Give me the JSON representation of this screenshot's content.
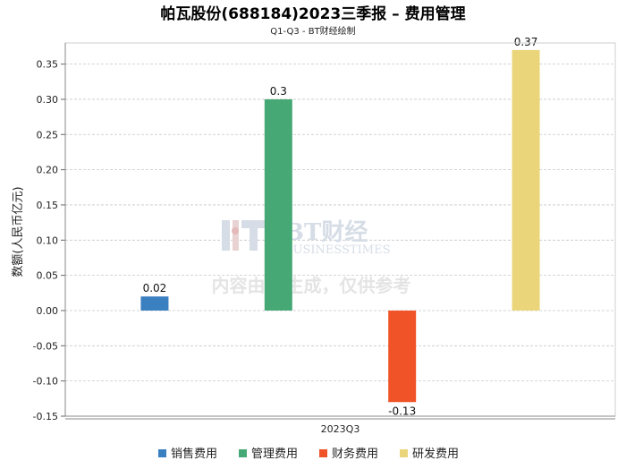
{
  "chart_data": {
    "type": "bar",
    "title": "帕瓦股份(688184)2023三季报 – 费用管理",
    "subtitle": "Q1-Q3 - BT财经绘制",
    "ylabel": "数额(人民币亿元)",
    "xlabel": "",
    "categories": [
      "2023Q3"
    ],
    "ylim": [
      -0.15,
      0.38
    ],
    "yticks": [
      0.35,
      0.3,
      0.25,
      0.2,
      0.15,
      0.1,
      0.05,
      0.0,
      -0.05,
      -0.1,
      -0.15
    ],
    "ytick_labels": [
      "0.35",
      "0.30",
      "0.25",
      "0.20",
      "0.15",
      "0.10",
      "0.05",
      "0.00",
      "-0.05",
      "-0.10",
      "-0.15"
    ],
    "grid": true,
    "legend_position": "bottom",
    "series": [
      {
        "name": "销售费用",
        "values": [
          0.02
        ],
        "label": "0.02",
        "color": "#3a7fc0"
      },
      {
        "name": "管理费用",
        "values": [
          0.3
        ],
        "label": "0.3",
        "color": "#46a874"
      },
      {
        "name": "财务费用",
        "values": [
          -0.13
        ],
        "label": "-0.13",
        "color": "#f05327"
      },
      {
        "name": "研发费用",
        "values": [
          0.37
        ],
        "label": "0.37",
        "color": "#ebd57a"
      }
    ]
  },
  "watermark": {
    "brand": "BT财经",
    "brand_sub": "BUSINESSTIMES",
    "note": "内容由AI生成，仅供参考"
  }
}
